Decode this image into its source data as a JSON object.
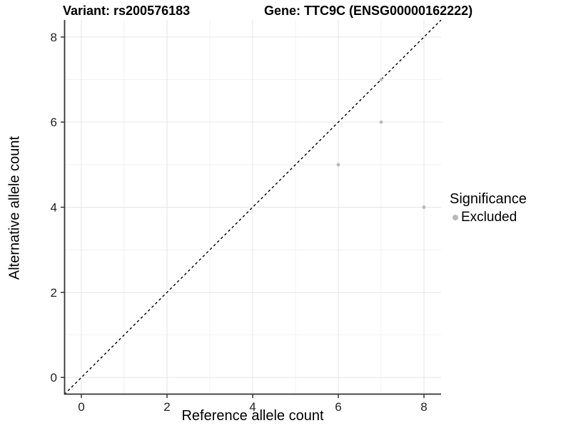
{
  "titles": {
    "left": "Variant: rs200576183",
    "right": "Gene: TTC9C (ENSG00000162222)"
  },
  "chart_data": {
    "type": "scatter",
    "title_left": "Variant: rs200576183",
    "title_right": "Gene: TTC9C (ENSG00000162222)",
    "xlabel": "Reference allele count",
    "ylabel": "Alternative allele count",
    "xlim": [
      -0.4,
      8.4
    ],
    "ylim": [
      -0.4,
      8.4
    ],
    "xticks": [
      0,
      2,
      4,
      6,
      8
    ],
    "yticks": [
      0,
      2,
      4,
      6,
      8
    ],
    "grid": {
      "major": [
        0,
        2,
        4,
        6,
        8
      ],
      "minor": [
        1,
        3,
        5,
        7
      ]
    },
    "points": [
      {
        "x": 6,
        "y": 5,
        "series": "Excluded"
      },
      {
        "x": 7,
        "y": 6,
        "series": "Excluded"
      },
      {
        "x": 7,
        "y": 7,
        "series": "Excluded"
      },
      {
        "x": 8,
        "y": 4,
        "series": "Excluded"
      }
    ],
    "point_color": "#b9b9b9",
    "identity_line": {
      "slope": 1,
      "intercept": 0,
      "style": "dashed",
      "color": "#000000"
    },
    "legend": {
      "title": "Significance",
      "position": "right",
      "items": [
        {
          "label": "Excluded",
          "color": "#b9b9b9"
        }
      ]
    }
  },
  "colors": {
    "axis_line": "#333333",
    "tick_label": "#1f1f1f",
    "grid_major": "#e5e5e5",
    "grid_minor": "#f1f1f1",
    "background": "#ffffff"
  }
}
